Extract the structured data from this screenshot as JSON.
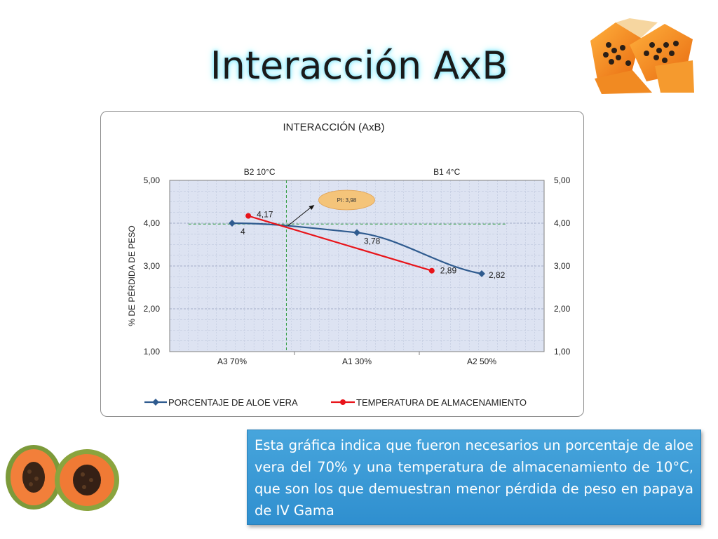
{
  "slide": {
    "title": "Interacción AxB",
    "description": "Esta gráfica  indica que fueron necesarios un porcentaje de aloe vera del 70% y una temperatura de almacenamiento de 10°C, que son los que demuestran menor pérdida de peso en papaya de IV Gama"
  },
  "colors": {
    "series_aloe": "#2f5b8f",
    "series_temp": "#e8141a",
    "plot_bg": "#dde3f2",
    "box_bg": "#3d9cd8",
    "guide": "#2e9b3e",
    "bubble": "#f4c47a"
  },
  "chart_data": {
    "type": "line",
    "title": "INTERACCIÓN (AxB)",
    "ylabel": "% DE PÉRDIDA DE PESO",
    "ylim": [
      1,
      5
    ],
    "y_ticks": [
      "1,00",
      "2,00",
      "3,00",
      "4,00",
      "5,00"
    ],
    "grid": true,
    "legend_position": "bottom",
    "primary_x": {
      "categories": [
        "A3 70%",
        "A1 30%",
        "A2 50%"
      ]
    },
    "secondary_x": {
      "categories": [
        "B2 10°C",
        "B1 4°C"
      ]
    },
    "series": [
      {
        "name": "PORCENTAJE DE ALOE VERA",
        "axis": "primary",
        "values": [
          4.0,
          3.78,
          2.82
        ],
        "labels": [
          "4",
          "3,78",
          "2,82"
        ],
        "marker": "diamond",
        "color": "#2f5b8f"
      },
      {
        "name": "TEMPERATURA DE ALMACENAMIENTO",
        "axis": "secondary",
        "values": [
          4.17,
          2.89
        ],
        "labels": [
          "4,17",
          "2,89"
        ],
        "marker": "circle",
        "color": "#e8141a"
      }
    ],
    "annotation": {
      "text": "PI: 3,98",
      "value": 3.98
    }
  }
}
